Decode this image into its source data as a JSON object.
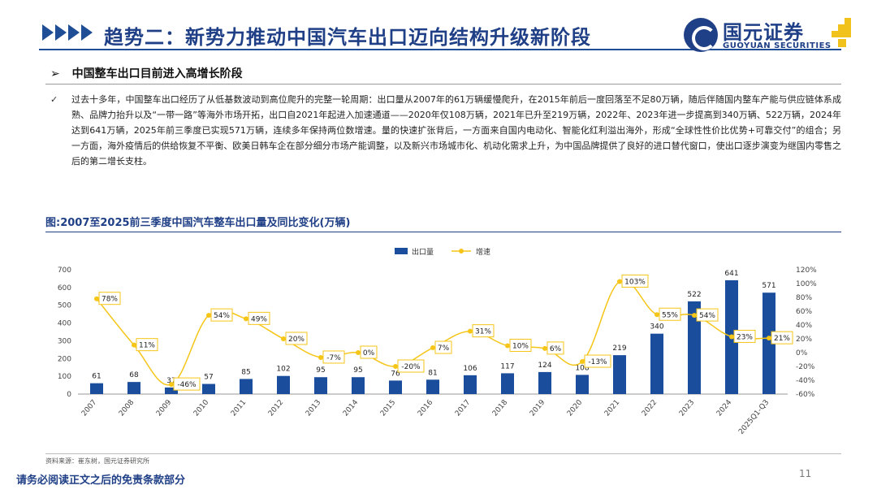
{
  "header": {
    "title": "趋势二：新势力推动中国汽车出口迈向结构升级新阶段",
    "logo_cn": "国元证券",
    "logo_en": "GUOYUAN SECURITIES"
  },
  "section": {
    "bullet": "➢",
    "heading": "中国整车出口目前进入高增长阶段",
    "check": "✓",
    "paragraph": "过去十多年，中国整车出口经历了从低基数波动到高位爬升的完整一轮周期：出口量从2007年的61万辆缓慢爬升，在2015年前后一度回落至不足80万辆，随后伴随国内整车产能与供应链体系成熟、品牌力抬升以及“一带一路”等海外市场开拓，出口自2021年起进入加速通道——2020年仅108万辆，2021年已升至219万辆，2022年、2023年进一步提高到340万辆、522万辆，2024年达到641万辆，2025年前三季度已实现571万辆，连续多年保持两位数增速。量的快速扩张背后，一方面来自国内电动化、智能化红利溢出海外，形成“全球性性价比优势+可靠交付”的组合；另一方面，海外疫情后的供给恢复不平衡、欧美日韩车企在部分细分市场产能调整，以及新兴市场城市化、机动化需求上升，为中国品牌提供了良好的进口替代窗口，使出口逐步演变为继国内零售之后的第二增长支柱。"
  },
  "chart_data": {
    "type": "bar",
    "title": "图:2007至2025前三季度中国汽车整车出口量及同比变化(万辆)",
    "categories": [
      "2007",
      "2008",
      "2009",
      "2010",
      "2011",
      "2012",
      "2013",
      "2014",
      "2015",
      "2016",
      "2017",
      "2018",
      "2019",
      "2020",
      "2021",
      "2022",
      "2023",
      "2024",
      "2025Q1-Q3"
    ],
    "series": [
      {
        "name": "出口量",
        "type": "bar",
        "axis": "left",
        "color": "#1a4d9c",
        "values": [
          61,
          68,
          37,
          57,
          85,
          102,
          95,
          95,
          76,
          81,
          106,
          117,
          124,
          108,
          219,
          340,
          522,
          641,
          571
        ]
      },
      {
        "name": "增速",
        "type": "line",
        "axis": "right",
        "color": "#f5c518",
        "values": [
          78,
          11,
          -46,
          54,
          49,
          20,
          -7,
          0,
          -20,
          7,
          31,
          10,
          6,
          -13,
          103,
          55,
          54,
          23,
          21
        ],
        "labels": [
          "78%",
          "11%",
          "-46%",
          "54%",
          "49%",
          "20%",
          "-7%",
          "0%",
          "-20%",
          "7%",
          "31%",
          "10%",
          "6%",
          "-13%",
          "103%",
          "55%",
          "54%",
          "23%",
          "21%"
        ]
      }
    ],
    "ylim": [
      0,
      700
    ],
    "yticks": [
      0,
      100,
      200,
      300,
      400,
      500,
      600,
      700
    ],
    "y2lim": [
      -60,
      120
    ],
    "y2ticks": [
      "-60%",
      "-40%",
      "-20%",
      "0%",
      "20%",
      "40%",
      "60%",
      "80%",
      "100%",
      "120%"
    ],
    "legend": [
      "出口量",
      "增速"
    ]
  },
  "footer": {
    "source": "资料来源：崔东树，国元证券研究所",
    "disclaimer": "请务必阅读正文之后的免责条款部分",
    "page": "11"
  }
}
